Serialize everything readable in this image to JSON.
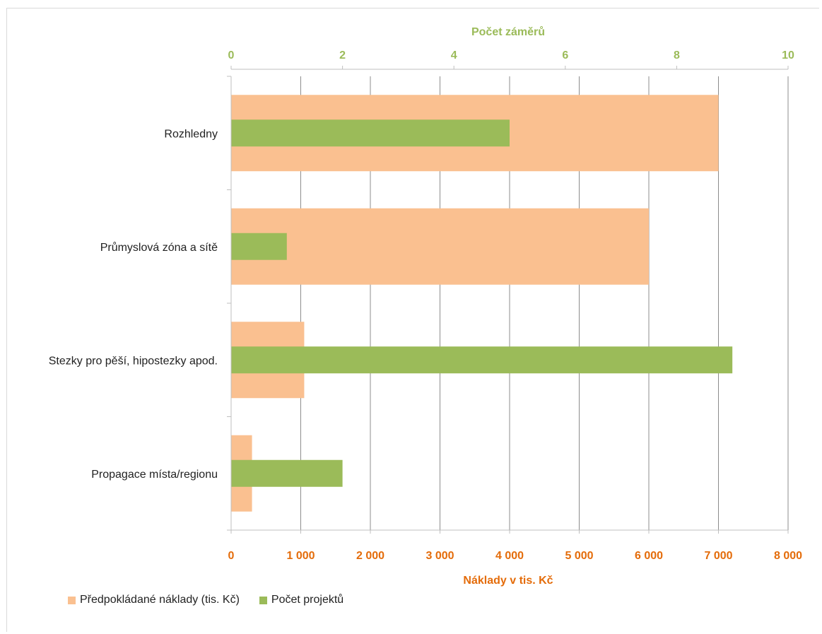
{
  "colors": {
    "cost_bar": "#FAC090",
    "count_bar": "#9BBB59",
    "bottom_axis_text": "#E46C0A",
    "top_axis_text": "#9BBB59",
    "gridline": "#8c8c8c",
    "axis_line": "#bfbfbf"
  },
  "chart_data": {
    "type": "bar",
    "orientation": "horizontal",
    "categories": [
      "Rozhledny",
      "Průmyslová zóna a sítě",
      "Stezky pro pěší, hipostezky apod.",
      "Propagace místa/regionu"
    ],
    "series": [
      {
        "name": "Předpokládané náklady (tis. Kč)",
        "axis": "bottom",
        "values": [
          7000,
          6000,
          1050,
          300
        ]
      },
      {
        "name": "Počet projektů",
        "axis": "top",
        "values": [
          5,
          1,
          9,
          2
        ]
      }
    ],
    "bottom_axis": {
      "title": "Náklady v tis. Kč",
      "range": [
        0,
        8000
      ],
      "ticks": [
        0,
        1000,
        2000,
        3000,
        4000,
        5000,
        6000,
        7000,
        8000
      ],
      "tick_labels": [
        "0",
        "1 000",
        "2 000",
        "3 000",
        "4 000",
        "5 000",
        "6 000",
        "7 000",
        "8 000"
      ]
    },
    "top_axis": {
      "title": "Počet záměrů",
      "range": [
        0,
        10
      ],
      "ticks": [
        0,
        2,
        4,
        6,
        8,
        10
      ],
      "tick_labels": [
        "0",
        "2",
        "4",
        "6",
        "8",
        "10"
      ]
    },
    "grid": true,
    "legend_position": "bottom-left"
  }
}
